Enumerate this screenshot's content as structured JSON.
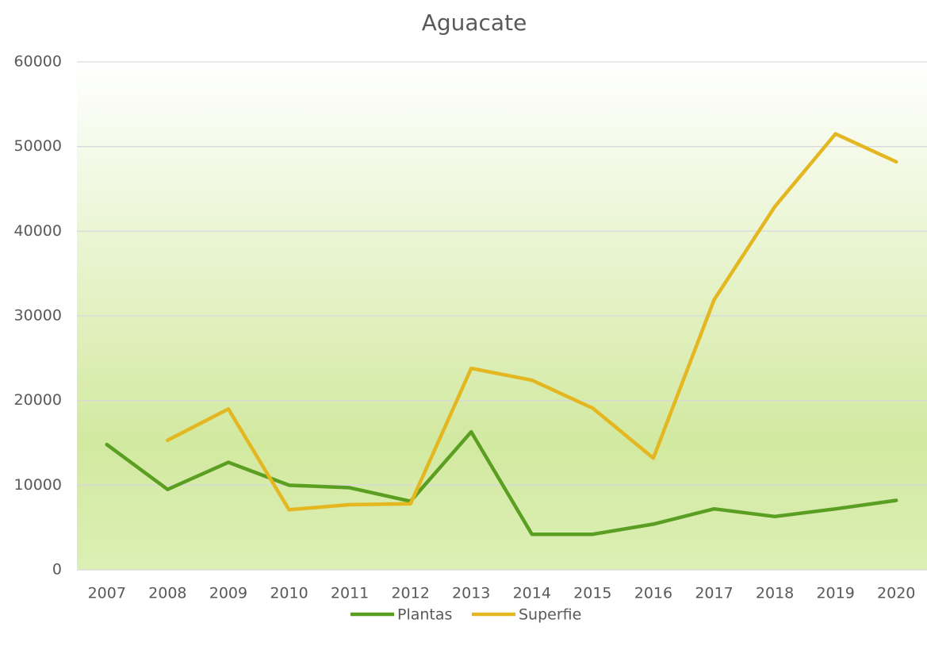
{
  "chart_data": {
    "type": "line",
    "title": "Aguacate",
    "categories": [
      "2007",
      "2008",
      "2009",
      "2010",
      "2011",
      "2012",
      "2013",
      "2014",
      "2015",
      "2016",
      "2017",
      "2018",
      "2019",
      "2020"
    ],
    "series": [
      {
        "name": "Plantas",
        "color": "#5a9f22",
        "values": [
          14800,
          9500,
          12700,
          10000,
          9700,
          8100,
          16300,
          4200,
          4200,
          5400,
          7200,
          6300,
          7200,
          8200
        ]
      },
      {
        "name": "Superfie",
        "color": "#e4b721",
        "values": [
          null,
          15300,
          19000,
          7100,
          7700,
          7800,
          23800,
          22400,
          19100,
          13200,
          31900,
          42900,
          51500,
          48200
        ]
      }
    ],
    "ylim": [
      0,
      60000
    ],
    "yticks": [
      0,
      10000,
      20000,
      30000,
      40000,
      50000,
      60000
    ],
    "grid": true,
    "legend": "bottom"
  }
}
